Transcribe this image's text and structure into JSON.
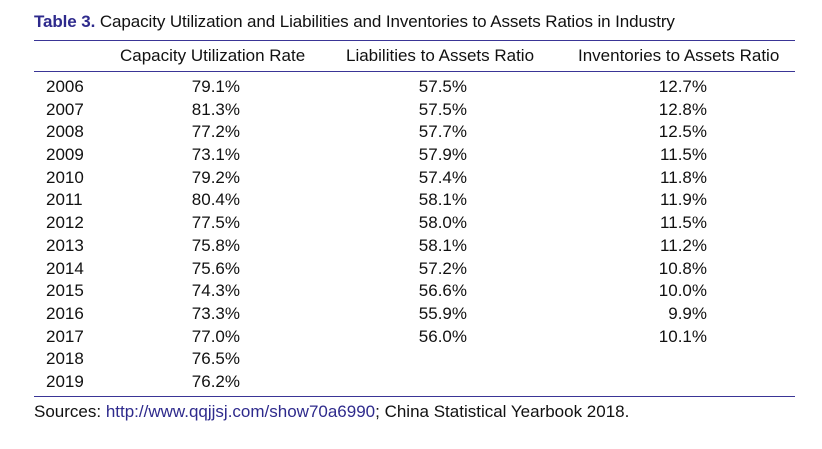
{
  "caption": {
    "label": "Table 3.",
    "title": "Capacity Utilization and Liabilities and Inventories to Assets Ratios in Industry"
  },
  "columns": [
    "Capacity Utilization Rate",
    "Liabilities to Assets Ratio",
    "Inventories to Assets Ratio"
  ],
  "rows": [
    {
      "year": "2006",
      "cap": "79.1%",
      "liab": "57.5%",
      "inv": "12.7%"
    },
    {
      "year": "2007",
      "cap": "81.3%",
      "liab": "57.5%",
      "inv": "12.8%"
    },
    {
      "year": "2008",
      "cap": "77.2%",
      "liab": "57.7%",
      "inv": "12.5%"
    },
    {
      "year": "2009",
      "cap": "73.1%",
      "liab": "57.9%",
      "inv": "11.5%"
    },
    {
      "year": "2010",
      "cap": "79.2%",
      "liab": "57.4%",
      "inv": "11.8%"
    },
    {
      "year": "2011",
      "cap": "80.4%",
      "liab": "58.1%",
      "inv": "11.9%"
    },
    {
      "year": "2012",
      "cap": "77.5%",
      "liab": "58.0%",
      "inv": "11.5%"
    },
    {
      "year": "2013",
      "cap": "75.8%",
      "liab": "58.1%",
      "inv": "11.2%"
    },
    {
      "year": "2014",
      "cap": "75.6%",
      "liab": "57.2%",
      "inv": "10.8%"
    },
    {
      "year": "2015",
      "cap": "74.3%",
      "liab": "56.6%",
      "inv": "10.0%"
    },
    {
      "year": "2016",
      "cap": "73.3%",
      "liab": "55.9%",
      "inv": "9.9%"
    },
    {
      "year": "2017",
      "cap": "77.0%",
      "liab": "56.0%",
      "inv": "10.1%"
    },
    {
      "year": "2018",
      "cap": "76.5%",
      "liab": "",
      "inv": ""
    },
    {
      "year": "2019",
      "cap": "76.2%",
      "liab": "",
      "inv": ""
    }
  ],
  "sources": {
    "prefix": "Sources: ",
    "link_text": "http://www.qqjjsj.com/show70a6990",
    "suffix": "; China Statistical Yearbook 2018."
  },
  "colors": {
    "accent": "#2e2a8c",
    "rule": "#3a3596",
    "text": "#111111"
  }
}
